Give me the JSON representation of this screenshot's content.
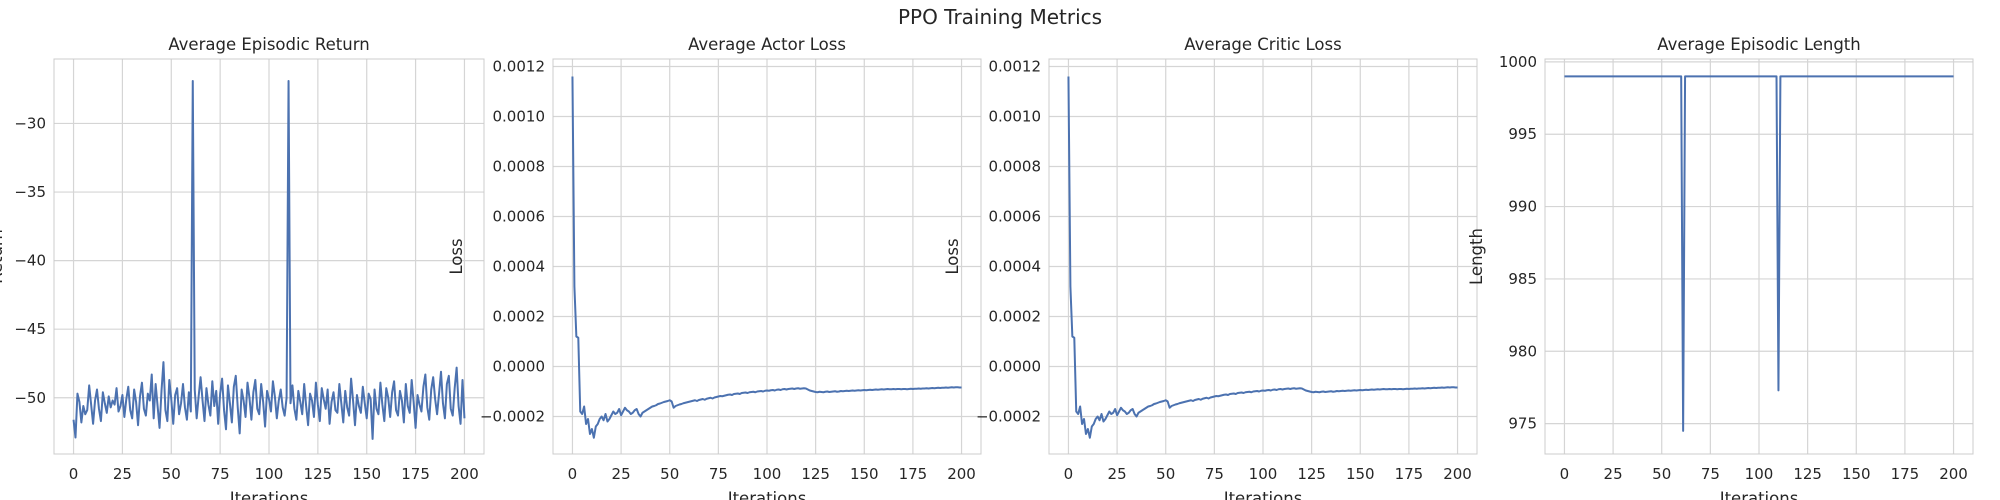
{
  "suptitle": "PPO Training Metrics",
  "colors": {
    "line": "#4c72b0",
    "grid": "#d5d5d5",
    "frame": "#cccccc",
    "text": "#262626"
  },
  "chart_data": [
    {
      "type": "line",
      "title": "Average Episodic Return",
      "xlabel": "Iterations",
      "ylabel": "Return",
      "xlim": [
        -10,
        210
      ],
      "ylim": [
        -54.1,
        -25.3
      ],
      "xticks": [
        0,
        25,
        50,
        75,
        100,
        125,
        150,
        175,
        200
      ],
      "yticks": [
        -50,
        -45,
        -40,
        -35,
        -30
      ],
      "grid": true,
      "series": [
        {
          "values": [
            -51.6,
            -52.9,
            -49.7,
            -50.3,
            -51.8,
            -50.6,
            -51.2,
            -50.9,
            -49.1,
            -50.5,
            -51.9,
            -50.2,
            -49.4,
            -50.8,
            -51.7,
            -49.6,
            -50.4,
            -51.1,
            -49.9,
            -50.7,
            -50.2,
            -50.5,
            -49.3,
            -51.0,
            -50.6,
            -49.8,
            -51.4,
            -50.1,
            -49.2,
            -50.9,
            -51.5,
            -49.4,
            -50.3,
            -52.0,
            -49.9,
            -48.9,
            -50.8,
            -51.3,
            -49.7,
            -50.2,
            -48.3,
            -51.5,
            -49.0,
            -50.6,
            -52.2,
            -49.5,
            -47.4,
            -50.9,
            -51.7,
            -48.7,
            -50.1,
            -51.9,
            -49.8,
            -49.3,
            -51.2,
            -50.4,
            -49.0,
            -50.7,
            -51.6,
            -49.6,
            -51.0,
            -26.9,
            -49.4,
            -51.5,
            -49.9,
            -48.5,
            -50.2,
            -51.7,
            -49.3,
            -50.5,
            -51.3,
            -48.8,
            -50.6,
            -49.5,
            -51.9,
            -49.7,
            -48.6,
            -50.9,
            -52.3,
            -49.1,
            -50.4,
            -51.8,
            -49.2,
            -48.4,
            -50.7,
            -52.6,
            -49.4,
            -50.2,
            -51.4,
            -48.9,
            -50.0,
            -51.6,
            -49.6,
            -48.7,
            -50.8,
            -51.2,
            -49.0,
            -50.3,
            -52.1,
            -49.5,
            -50.1,
            -51.0,
            -48.8,
            -49.9,
            -51.5,
            -50.2,
            -49.4,
            -50.7,
            -51.3,
            -50.0,
            -26.9,
            -50.4,
            -49.1,
            -50.8,
            -51.6,
            -49.5,
            -50.3,
            -51.2,
            -49.0,
            -50.6,
            -52.0,
            -49.7,
            -50.2,
            -51.4,
            -48.9,
            -50.5,
            -51.7,
            -49.3,
            -50.1,
            -50.8,
            -49.4,
            -51.9,
            -50.3,
            -49.6,
            -50.9,
            -51.1,
            -49.0,
            -50.4,
            -51.8,
            -49.5,
            -50.7,
            -51.3,
            -48.6,
            -50.2,
            -52.0,
            -49.8,
            -50.6,
            -51.1,
            -49.2,
            -50.4,
            -51.5,
            -49.7,
            -50.1,
            -53.0,
            -49.4,
            -50.8,
            -51.2,
            -48.9,
            -50.5,
            -51.7,
            -49.3,
            -50.0,
            -51.4,
            -49.6,
            -48.8,
            -50.9,
            -51.3,
            -49.5,
            -50.2,
            -51.8,
            -49.0,
            -50.6,
            -51.1,
            -48.7,
            -50.3,
            -52.2,
            -49.8,
            -50.5,
            -51.0,
            -49.2,
            -48.3,
            -50.7,
            -51.6,
            -49.4,
            -48.5,
            -50.1,
            -51.2,
            -49.7,
            -48.1,
            -50.4,
            -51.5,
            -49.0,
            -48.4,
            -50.8,
            -51.3,
            -49.3,
            -47.8,
            -50.6,
            -51.9,
            -48.7,
            -51.5
          ]
        }
      ]
    },
    {
      "type": "line",
      "title": "Average Actor Loss",
      "xlabel": "Iterations",
      "ylabel": "Loss",
      "xlim": [
        -10,
        210
      ],
      "ylim": [
        -0.00035,
        0.00123
      ],
      "xticks": [
        0,
        25,
        50,
        75,
        100,
        125,
        150,
        175,
        200
      ],
      "yticks": [
        -0.0002,
        0.0,
        0.0002,
        0.0004,
        0.0006,
        0.0008,
        0.001,
        0.0012
      ],
      "ytick_labels": [
        "−0.0002",
        "0.0000",
        "0.0002",
        "0.0004",
        "0.0006",
        "0.0008",
        "0.0010",
        "0.0012"
      ],
      "grid": true,
      "series": [
        {
          "values": [
            0.00116,
            0.00032,
            0.00012,
            0.000115,
            -0.00018,
            -0.00019,
            -0.00016,
            -0.00023,
            -0.00021,
            -0.00027,
            -0.00025,
            -0.000285,
            -0.00024,
            -0.00023,
            -0.00021,
            -0.0002,
            -0.000215,
            -0.00019,
            -0.00022,
            -0.00021,
            -0.000195,
            -0.00018,
            -0.00019,
            -0.000185,
            -0.00017,
            -0.000195,
            -0.00018,
            -0.000165,
            -0.000175,
            -0.00018,
            -0.00019,
            -0.000185,
            -0.000175,
            -0.00017,
            -0.00019,
            -0.0002,
            -0.000185,
            -0.00018,
            -0.000175,
            -0.00017,
            -0.000165,
            -0.00016,
            -0.000158,
            -0.000155,
            -0.00015,
            -0.000148,
            -0.000145,
            -0.000142,
            -0.00014,
            -0.000138,
            -0.000135,
            -0.00014,
            -0.000165,
            -0.000158,
            -0.000155,
            -0.000152,
            -0.00015,
            -0.000147,
            -0.000145,
            -0.000143,
            -0.000141,
            -0.000139,
            -0.000137,
            -0.000135,
            -0.000138,
            -0.000134,
            -0.000132,
            -0.00013,
            -0.000133,
            -0.000129,
            -0.000127,
            -0.000125,
            -0.000128,
            -0.000124,
            -0.000122,
            -0.00012,
            -0.000118,
            -0.000119,
            -0.000117,
            -0.000115,
            -0.000113,
            -0.000112,
            -0.000114,
            -0.00011,
            -0.000109,
            -0.000108,
            -0.00011,
            -0.000106,
            -0.000105,
            -0.000104,
            -0.000106,
            -0.000103,
            -0.000102,
            -0.000101,
            -0.000103,
            -0.0001,
            -9.9e-05,
            -9.8e-05,
            -0.0001,
            -9.7e-05,
            -9.6e-05,
            -9.7e-05,
            -9.5e-05,
            -9.4e-05,
            -9.6e-05,
            -9.3e-05,
            -9.2e-05,
            -9.4e-05,
            -9.1e-05,
            -9e-05,
            -9.2e-05,
            -9e-05,
            -8.9e-05,
            -8.8e-05,
            -9e-05,
            -8.8e-05,
            -8.7e-05,
            -8.9e-05,
            -8.8e-05,
            -8.7e-05,
            -8.8e-05,
            -9.2e-05,
            -9.6e-05,
            -9.8e-05,
            -0.0001,
            -0.000102,
            -0.000103,
            -0.000101,
            -0.000102,
            -0.000103,
            -0.000101,
            -0.0001,
            -0.000102,
            -0.000101,
            -0.0001,
            -9.9e-05,
            -0.000101,
            -0.0001,
            -9.8e-05,
            -9.9e-05,
            -9.8e-05,
            -9.7e-05,
            -9.8e-05,
            -9.7e-05,
            -9.6e-05,
            -9.7e-05,
            -9.6e-05,
            -9.5e-05,
            -9.6e-05,
            -9.5e-05,
            -9.4e-05,
            -9.5e-05,
            -9.4e-05,
            -9.3e-05,
            -9.4e-05,
            -9.3e-05,
            -9.2e-05,
            -9.3e-05,
            -9.2e-05,
            -9.1e-05,
            -9.2e-05,
            -9.1e-05,
            -9e-05,
            -9.1e-05,
            -9.1e-05,
            -9e-05,
            -9.1e-05,
            -9e-05,
            -9e-05,
            -9.1e-05,
            -9e-05,
            -9e-05,
            -9.1e-05,
            -9e-05,
            -8.9e-05,
            -9e-05,
            -8.9e-05,
            -8.9e-05,
            -8.8e-05,
            -8.9e-05,
            -8.8e-05,
            -8.8e-05,
            -8.7e-05,
            -8.8e-05,
            -8.7e-05,
            -8.6e-05,
            -8.7e-05,
            -8.6e-05,
            -8.5e-05,
            -8.6e-05,
            -8.5e-05,
            -8.5e-05,
            -8.4e-05,
            -8.5e-05,
            -8.4e-05,
            -8.3e-05,
            -8.4e-05,
            -8.3e-05,
            -8.3e-05,
            -8.4e-05,
            -8.4e-05
          ]
        }
      ]
    },
    {
      "type": "line",
      "title": "Average Critic Loss",
      "xlabel": "Iterations",
      "ylabel": "Loss",
      "xlim": [
        -10,
        210
      ],
      "ylim": [
        -0.00035,
        0.00123
      ],
      "xticks": [
        0,
        25,
        50,
        75,
        100,
        125,
        150,
        175,
        200
      ],
      "yticks": [
        -0.0002,
        0.0,
        0.0002,
        0.0004,
        0.0006,
        0.0008,
        0.001,
        0.0012
      ],
      "ytick_labels": [
        "−0.0002",
        "0.0000",
        "0.0002",
        "0.0004",
        "0.0006",
        "0.0008",
        "0.0010",
        "0.0012"
      ],
      "grid": true,
      "series": [
        {
          "values": [
            0.00116,
            0.00032,
            0.00012,
            0.000115,
            -0.00018,
            -0.00019,
            -0.00016,
            -0.00023,
            -0.00021,
            -0.00027,
            -0.00025,
            -0.000285,
            -0.00024,
            -0.00023,
            -0.00021,
            -0.0002,
            -0.000215,
            -0.00019,
            -0.00022,
            -0.00021,
            -0.000195,
            -0.00018,
            -0.00019,
            -0.000185,
            -0.00017,
            -0.000195,
            -0.00018,
            -0.000165,
            -0.000175,
            -0.00018,
            -0.00019,
            -0.000185,
            -0.000175,
            -0.00017,
            -0.00019,
            -0.0002,
            -0.000185,
            -0.00018,
            -0.000175,
            -0.00017,
            -0.000165,
            -0.00016,
            -0.000158,
            -0.000155,
            -0.00015,
            -0.000148,
            -0.000145,
            -0.000142,
            -0.00014,
            -0.000138,
            -0.000135,
            -0.00014,
            -0.000165,
            -0.000158,
            -0.000155,
            -0.000152,
            -0.00015,
            -0.000147,
            -0.000145,
            -0.000143,
            -0.000141,
            -0.000139,
            -0.000137,
            -0.000135,
            -0.000138,
            -0.000134,
            -0.000132,
            -0.00013,
            -0.000133,
            -0.000129,
            -0.000127,
            -0.000125,
            -0.000128,
            -0.000124,
            -0.000122,
            -0.00012,
            -0.000118,
            -0.000119,
            -0.000117,
            -0.000115,
            -0.000113,
            -0.000112,
            -0.000114,
            -0.00011,
            -0.000109,
            -0.000108,
            -0.00011,
            -0.000106,
            -0.000105,
            -0.000104,
            -0.000106,
            -0.000103,
            -0.000102,
            -0.000101,
            -0.000103,
            -0.0001,
            -9.9e-05,
            -9.8e-05,
            -0.0001,
            -9.7e-05,
            -9.6e-05,
            -9.7e-05,
            -9.5e-05,
            -9.4e-05,
            -9.6e-05,
            -9.3e-05,
            -9.2e-05,
            -9.4e-05,
            -9.1e-05,
            -9e-05,
            -9.2e-05,
            -9e-05,
            -8.9e-05,
            -8.8e-05,
            -9e-05,
            -8.8e-05,
            -8.7e-05,
            -8.9e-05,
            -8.8e-05,
            -8.7e-05,
            -8.8e-05,
            -9.2e-05,
            -9.6e-05,
            -9.8e-05,
            -0.0001,
            -0.000102,
            -0.000103,
            -0.000101,
            -0.000102,
            -0.000103,
            -0.000101,
            -0.0001,
            -0.000102,
            -0.000101,
            -0.0001,
            -9.9e-05,
            -0.000101,
            -0.0001,
            -9.8e-05,
            -9.9e-05,
            -9.8e-05,
            -9.7e-05,
            -9.8e-05,
            -9.7e-05,
            -9.6e-05,
            -9.7e-05,
            -9.6e-05,
            -9.5e-05,
            -9.6e-05,
            -9.5e-05,
            -9.4e-05,
            -9.5e-05,
            -9.4e-05,
            -9.3e-05,
            -9.4e-05,
            -9.3e-05,
            -9.2e-05,
            -9.3e-05,
            -9.2e-05,
            -9.1e-05,
            -9.2e-05,
            -9.1e-05,
            -9e-05,
            -9.1e-05,
            -9.1e-05,
            -9e-05,
            -9.1e-05,
            -9e-05,
            -9e-05,
            -9.1e-05,
            -9e-05,
            -9e-05,
            -9.1e-05,
            -9e-05,
            -8.9e-05,
            -9e-05,
            -8.9e-05,
            -8.9e-05,
            -8.8e-05,
            -8.9e-05,
            -8.8e-05,
            -8.8e-05,
            -8.7e-05,
            -8.8e-05,
            -8.7e-05,
            -8.6e-05,
            -8.7e-05,
            -8.6e-05,
            -8.5e-05,
            -8.6e-05,
            -8.5e-05,
            -8.5e-05,
            -8.4e-05,
            -8.5e-05,
            -8.4e-05,
            -8.3e-05,
            -8.4e-05,
            -8.3e-05,
            -8.3e-05,
            -8.4e-05,
            -8.4e-05
          ]
        }
      ]
    },
    {
      "type": "line",
      "title": "Average Episodic Length",
      "xlabel": "Iterations",
      "ylabel": "Length",
      "xlim": [
        -10,
        210
      ],
      "ylim": [
        972.9,
        1000.2
      ],
      "xticks": [
        0,
        25,
        50,
        75,
        100,
        125,
        150,
        175,
        200
      ],
      "yticks": [
        975,
        980,
        985,
        990,
        995,
        1000
      ],
      "grid": true,
      "series": [
        {
          "values": [
            999,
            999,
            999,
            999,
            999,
            999,
            999,
            999,
            999,
            999,
            999,
            999,
            999,
            999,
            999,
            999,
            999,
            999,
            999,
            999,
            999,
            999,
            999,
            999,
            999,
            999,
            999,
            999,
            999,
            999,
            999,
            999,
            999,
            999,
            999,
            999,
            999,
            999,
            999,
            999,
            999,
            999,
            999,
            999,
            999,
            999,
            999,
            999,
            999,
            999,
            999,
            999,
            999,
            999,
            999,
            999,
            999,
            999,
            999,
            999,
            999,
            974.5,
            999,
            999,
            999,
            999,
            999,
            999,
            999,
            999,
            999,
            999,
            999,
            999,
            999,
            999,
            999,
            999,
            999,
            999,
            999,
            999,
            999,
            999,
            999,
            999,
            999,
            999,
            999,
            999,
            999,
            999,
            999,
            999,
            999,
            999,
            999,
            999,
            999,
            999,
            999,
            999,
            999,
            999,
            999,
            999,
            999,
            999,
            999,
            999,
            977.3,
            999,
            999,
            999,
            999,
            999,
            999,
            999,
            999,
            999,
            999,
            999,
            999,
            999,
            999,
            999,
            999,
            999,
            999,
            999,
            999,
            999,
            999,
            999,
            999,
            999,
            999,
            999,
            999,
            999,
            999,
            999,
            999,
            999,
            999,
            999,
            999,
            999,
            999,
            999,
            999,
            999,
            999,
            999,
            999,
            999,
            999,
            999,
            999,
            999,
            999,
            999,
            999,
            999,
            999,
            999,
            999,
            999,
            999,
            999,
            999,
            999,
            999,
            999,
            999,
            999,
            999,
            999,
            999,
            999,
            999,
            999,
            999,
            999,
            999,
            999,
            999,
            999,
            999,
            999,
            999,
            999,
            999,
            999,
            999,
            999,
            999,
            999,
            999,
            999,
            999
          ]
        }
      ]
    }
  ]
}
